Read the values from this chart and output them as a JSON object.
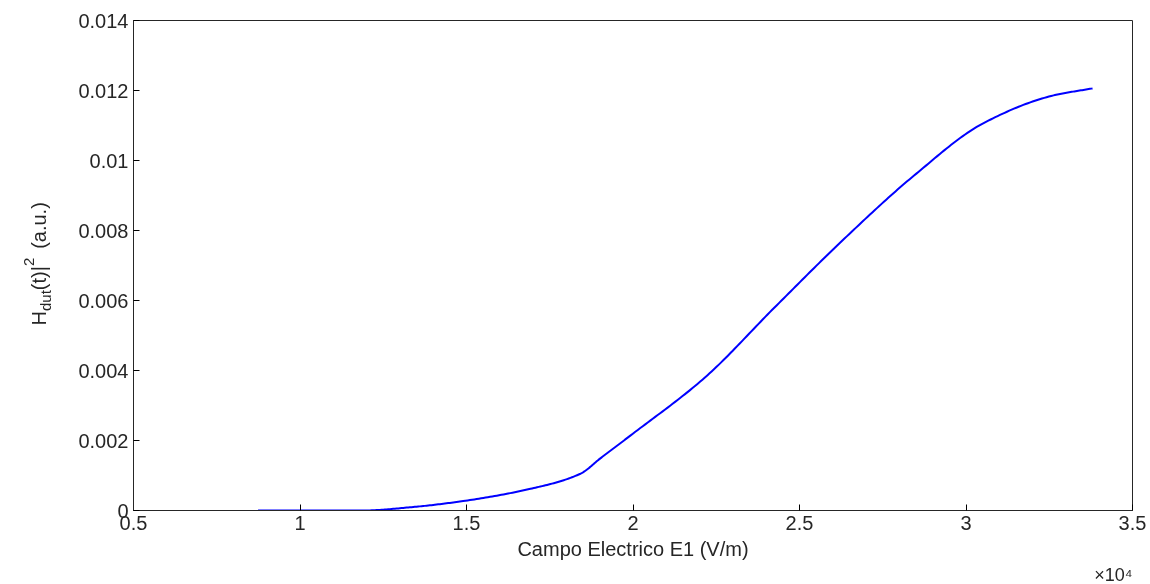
{
  "chart_data": {
    "type": "line",
    "xlabel": "Campo Electrico E1 (V/m)",
    "ylabel": "H$_{dut}$(t)|$^{2}$ (a.u.)",
    "annotations": [
      "×10⁴"
    ],
    "x": [
      0.874,
      1.19,
      1.34,
      1.49,
      1.692,
      1.842,
      1.902,
      1.992,
      2.216,
      2.425,
      2.635,
      2.844,
      3.053,
      3.263,
      3.38
    ],
    "series": [
      {
        "color": "#0000ff",
        "values": [
          0,
          0,
          0.0001,
          0.00027,
          0.00062,
          0.00105,
          0.00149,
          0.00214,
          0.0038,
          0.0058,
          0.00777,
          0.00957,
          0.01107,
          0.01186,
          0.01206
        ]
      }
    ],
    "xlim": [
      0.5,
      3.5
    ],
    "xticks": [
      0.5,
      1,
      1.5,
      2,
      2.5,
      3,
      3.5
    ],
    "ylim": [
      0,
      0.014
    ],
    "yticks": [
      0,
      0.002,
      0.004,
      0.006,
      0.008,
      0.01,
      0.012,
      0.014
    ],
    "grid": false,
    "marker": "none",
    "line_style": "solid"
  }
}
